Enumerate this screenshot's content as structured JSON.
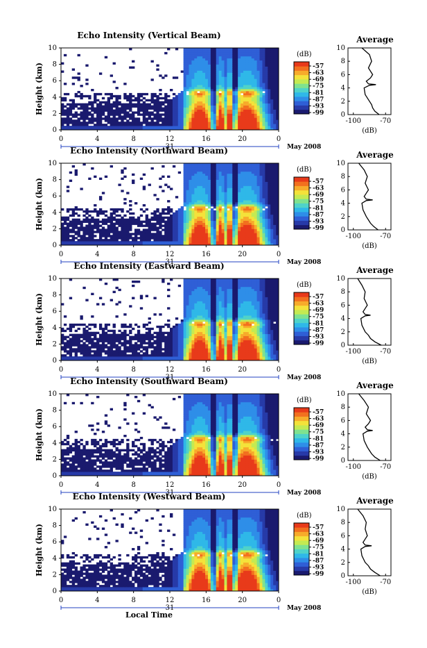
{
  "colors": {
    "colormap": [
      "#1a1a6e",
      "#273aa8",
      "#2f5fd6",
      "#2e8ee8",
      "#2fb8e8",
      "#4fd3c9",
      "#7fe28f",
      "#c4ea52",
      "#f4e23a",
      "#f7ab2b",
      "#f2701f",
      "#e83a1a"
    ]
  },
  "shared": {
    "y_ticks": [
      "0",
      "2",
      "4",
      "6",
      "8",
      "10"
    ],
    "x_ticks": [
      "0",
      "4",
      "8",
      "12",
      "16",
      "20",
      "0"
    ],
    "date_day": "31",
    "month_label": "May 2008",
    "cb_unit": "(dB)",
    "cb_ticks": [
      "-57",
      "-63",
      "-69",
      "-75",
      "-81",
      "-87",
      "-93",
      "-99"
    ],
    "avg_title": "Average",
    "avg_x_ticks": [
      "-100",
      "-70"
    ],
    "avg_xlabel": "(dB)",
    "ylabel": "Height (km)",
    "xlabel": "Local Time"
  },
  "chart_data": [
    {
      "type": "heatmap",
      "title": "Echo Intensity (Vertical Beam)",
      "xlim": [
        0,
        24
      ],
      "ylim": [
        0,
        10
      ],
      "clim": [
        -99,
        -57
      ],
      "xlabel": "",
      "ylabel": "Height (km)",
      "avg_profile": {
        "x": [
          -92,
          -85,
          -83,
          -86,
          -82,
          -84,
          -88,
          -86,
          -79,
          -85,
          -90,
          -89,
          -85,
          -83,
          -82,
          -80,
          -76
        ],
        "y": [
          10,
          9,
          8,
          7,
          6,
          5.5,
          5,
          4.6,
          4.5,
          4.4,
          4,
          3,
          2,
          1.5,
          1,
          0.5,
          0
        ],
        "xlim": [
          -105,
          -65
        ],
        "ylim": [
          0,
          10
        ]
      }
    },
    {
      "type": "heatmap",
      "title": "Echo Intensity (Northward Beam)",
      "xlim": [
        0,
        24
      ],
      "ylim": [
        0,
        10
      ],
      "clim": [
        -99,
        -57
      ],
      "xlabel": "",
      "ylabel": "Height (km)",
      "avg_profile": {
        "x": [
          -95,
          -90,
          -87,
          -89,
          -86,
          -88,
          -90,
          -88,
          -82,
          -88,
          -92,
          -91,
          -88,
          -86,
          -84,
          -81,
          -77
        ],
        "y": [
          10,
          9,
          8,
          7,
          6,
          5.5,
          5,
          4.6,
          4.5,
          4.4,
          4,
          3,
          2,
          1.5,
          1,
          0.5,
          0
        ],
        "xlim": [
          -105,
          -65
        ],
        "ylim": [
          0,
          10
        ]
      }
    },
    {
      "type": "heatmap",
      "title": "Echo Intensity (Eastward Beam)",
      "xlim": [
        0,
        24
      ],
      "ylim": [
        0,
        10
      ],
      "clim": [
        -99,
        -57
      ],
      "xlabel": "",
      "ylabel": "Height (km)",
      "avg_profile": {
        "x": [
          -96,
          -92,
          -89,
          -90,
          -87,
          -89,
          -91,
          -89,
          -84,
          -89,
          -93,
          -92,
          -89,
          -86,
          -84,
          -80,
          -74
        ],
        "y": [
          10,
          9,
          8,
          7,
          6,
          5.5,
          5,
          4.6,
          4.5,
          4.4,
          4,
          3,
          2,
          1.5,
          1,
          0.5,
          0
        ],
        "xlim": [
          -105,
          -65
        ],
        "ylim": [
          0,
          10
        ]
      }
    },
    {
      "type": "heatmap",
      "title": "Echo Intensity (Southward Beam)",
      "xlim": [
        0,
        24
      ],
      "ylim": [
        0,
        10
      ],
      "clim": [
        -99,
        -57
      ],
      "xlabel": "",
      "ylabel": "Height (km)",
      "avg_profile": {
        "x": [
          -95,
          -90,
          -86,
          -88,
          -84,
          -86,
          -89,
          -87,
          -82,
          -87,
          -91,
          -90,
          -87,
          -85,
          -83,
          -80,
          -75
        ],
        "y": [
          10,
          9,
          8,
          7,
          6,
          5.5,
          5,
          4.6,
          4.5,
          4.4,
          4,
          3,
          2,
          1.5,
          1,
          0.5,
          0
        ],
        "xlim": [
          -105,
          -65
        ],
        "ylim": [
          0,
          10
        ]
      }
    },
    {
      "type": "heatmap",
      "title": "Echo Intensity (Westward Beam)",
      "xlim": [
        0,
        24
      ],
      "ylim": [
        0,
        10
      ],
      "clim": [
        -99,
        -57
      ],
      "xlabel": "Local Time",
      "ylabel": "Height (km)",
      "avg_profile": {
        "x": [
          -96,
          -91,
          -88,
          -89,
          -87,
          -89,
          -91,
          -89,
          -83,
          -89,
          -93,
          -92,
          -89,
          -86,
          -84,
          -80,
          -75
        ],
        "y": [
          10,
          9,
          8,
          7,
          6,
          5.5,
          5,
          4.6,
          4.5,
          4.4,
          4,
          3,
          2,
          1.5,
          1,
          0.5,
          0
        ],
        "xlim": [
          -105,
          -65
        ],
        "ylim": [
          0,
          10
        ]
      }
    }
  ]
}
